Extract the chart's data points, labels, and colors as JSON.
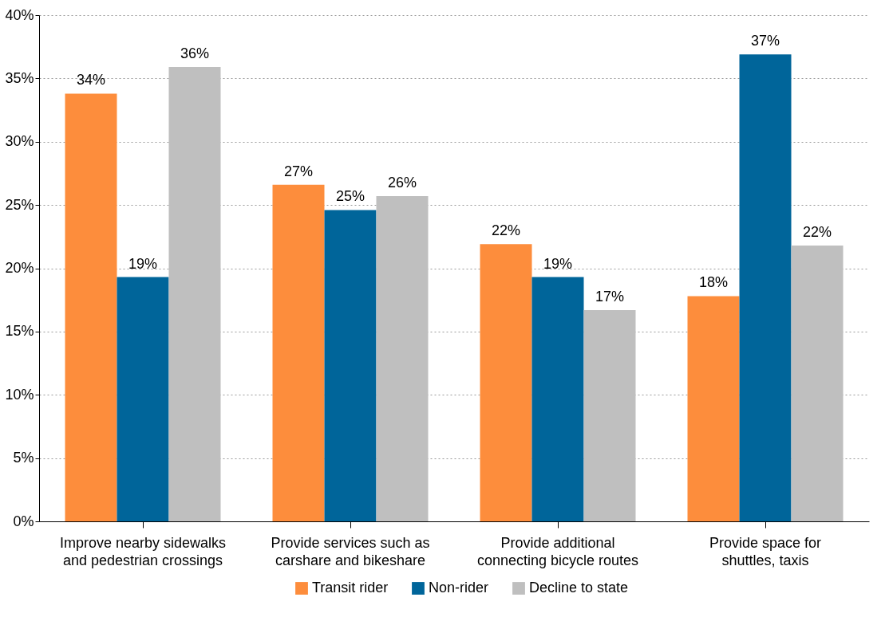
{
  "chart_data": {
    "type": "bar",
    "categories": [
      "Improve nearby sidewalks and pedestrian crossings",
      "Provide services such as carshare and bikeshare",
      "Provide additional connecting bicycle routes",
      "Provide space for shuttles, taxis"
    ],
    "series": [
      {
        "name": "Transit rider",
        "color": "#fd8d3c",
        "values": [
          33.8,
          26.6,
          21.9,
          17.8
        ],
        "value_labels": [
          "34%",
          "27%",
          "22%",
          "18%"
        ]
      },
      {
        "name": "Non-rider",
        "color": "#00659a",
        "values": [
          19.3,
          24.6,
          19.3,
          36.9
        ],
        "value_labels": [
          "19%",
          "25%",
          "19%",
          "37%"
        ]
      },
      {
        "name": "Decline to state",
        "color": "#bfbfbf",
        "values": [
          35.9,
          25.7,
          16.7,
          21.8
        ],
        "value_labels": [
          "36%",
          "26%",
          "17%",
          "22%"
        ]
      }
    ],
    "ylim": [
      0,
      40
    ],
    "yticks": [
      {
        "value": 0,
        "label": "0%"
      },
      {
        "value": 5,
        "label": "5%"
      },
      {
        "value": 10,
        "label": "10%"
      },
      {
        "value": 15,
        "label": "15%"
      },
      {
        "value": 20,
        "label": "20%"
      },
      {
        "value": 25,
        "label": "25%"
      },
      {
        "value": 30,
        "label": "30%"
      },
      {
        "value": 35,
        "label": "35%"
      },
      {
        "value": 40,
        "label": "40%"
      }
    ],
    "grid": "y",
    "legend": "bottom"
  }
}
